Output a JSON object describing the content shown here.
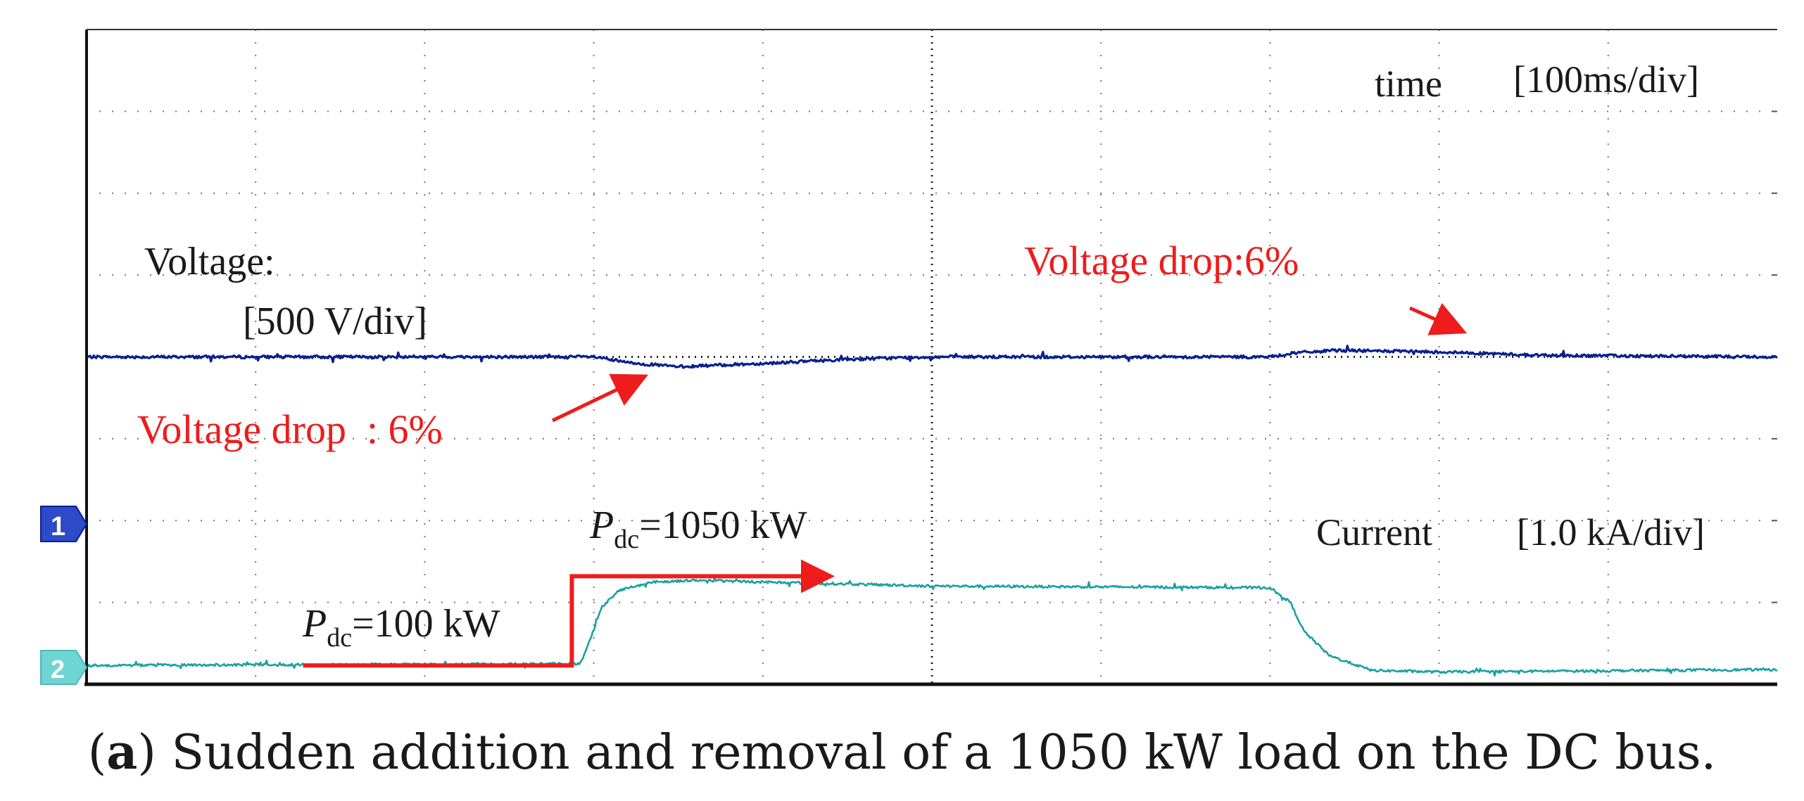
{
  "chart_data": {
    "type": "line",
    "title": "",
    "grid": true,
    "x_divisions": 10,
    "y_divisions": 8,
    "time_label": "time",
    "time_scale": "[100ms/div]",
    "series": [
      {
        "name": "Voltage",
        "label_line1": "Voltage:",
        "label_line2": "[500 V/div]",
        "channel": "1",
        "color": "#0a1f8f",
        "baseline_div": 4.0,
        "x_div": [
          0,
          3.0,
          3.2,
          3.5,
          4.0,
          4.5,
          5.0,
          7.0,
          7.15,
          7.4,
          8.0,
          8.6,
          10
        ],
        "y_div": [
          4.0,
          4.0,
          3.93,
          3.88,
          3.92,
          3.97,
          4.0,
          4.0,
          4.05,
          4.08,
          4.06,
          4.02,
          4.0
        ]
      },
      {
        "name": "Current",
        "label": "Current",
        "scale": "[1.0 kA/div]",
        "channel": "2",
        "color": "#1aa0a0",
        "x_div": [
          0,
          2.92,
          2.97,
          3.05,
          3.15,
          3.35,
          3.6,
          5.0,
          7.0,
          7.12,
          7.2,
          7.35,
          7.6,
          8.0,
          10
        ],
        "y_div": [
          0.23,
          0.25,
          0.5,
          0.95,
          1.15,
          1.25,
          1.27,
          1.2,
          1.18,
          1.0,
          0.65,
          0.35,
          0.17,
          0.15,
          0.18
        ]
      }
    ],
    "annotations": [
      {
        "name": "voltage-drop-left",
        "text": "Voltage drop  : 6%",
        "color": "#ee1c1c"
      },
      {
        "name": "voltage-drop-right",
        "text": "Voltage drop:6%",
        "color": "#ee1c1c"
      },
      {
        "name": "pdc-low",
        "symbol": "P",
        "subscript": "dc",
        "value": "=100 kW",
        "color": "#1a1a1a"
      },
      {
        "name": "pdc-high",
        "symbol": "P",
        "subscript": "dc",
        "value": "=1050 kW",
        "color": "#1a1a1a"
      }
    ],
    "pdc_step_x_div": [
      1.28,
      2.87,
      2.87,
      4.4
    ],
    "pdc_step_y_div": [
      0.23,
      0.23,
      1.32,
      1.32
    ]
  },
  "caption": {
    "label": "a",
    "text": " Sudden addition and removal of a 1050 kW load on the DC bus."
  }
}
